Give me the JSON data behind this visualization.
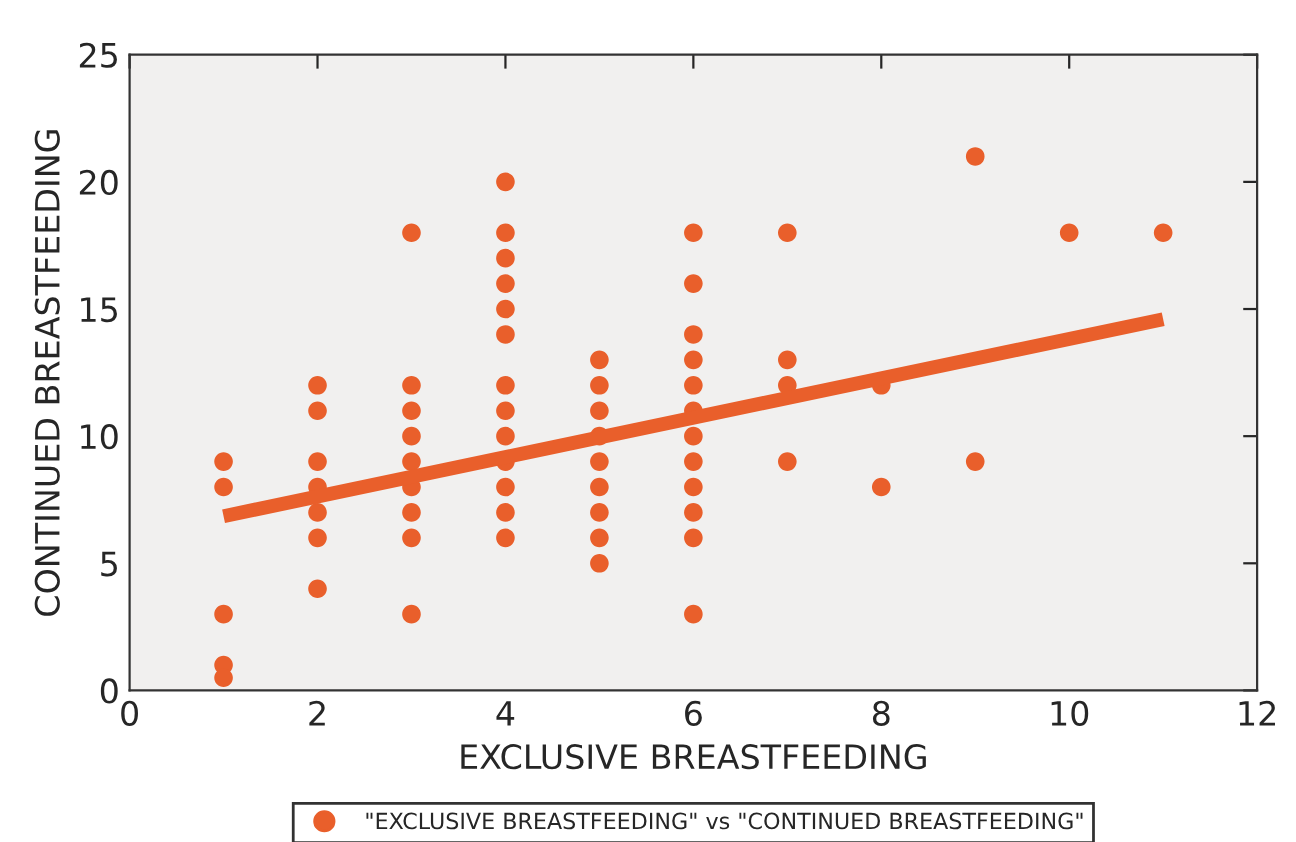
{
  "chart_data": {
    "type": "scatter",
    "xlabel": "EXCLUSIVE BREASTFEEDING",
    "ylabel": "CONTINUED BREASTFEEDING",
    "xlim": [
      0,
      12
    ],
    "xticks": [
      0,
      2,
      4,
      6,
      8,
      10,
      12
    ],
    "ylim": [
      0,
      25
    ],
    "yticks": [
      0,
      5,
      10,
      15,
      20,
      25
    ],
    "grid": false,
    "legend": "bottom",
    "marker": "circle",
    "series": [
      {
        "name": "\"EXCLUSIVE BREASTFEEDING\" vs \"CONTINUED BREASTFEEDING\"",
        "color": "#e95f2b",
        "x": [
          1,
          1,
          1,
          1,
          1,
          2,
          2,
          2,
          2,
          2,
          2,
          2,
          3,
          3,
          3,
          3,
          3,
          3,
          3,
          3,
          3,
          4,
          4,
          4,
          4,
          4,
          4,
          4,
          4,
          4,
          4,
          4,
          4,
          4,
          5,
          5,
          5,
          5,
          5,
          5,
          5,
          5,
          5,
          6,
          6,
          6,
          6,
          6,
          6,
          6,
          6,
          6,
          6,
          6,
          6,
          7,
          7,
          7,
          7,
          8,
          8,
          9,
          9,
          10,
          11
        ],
        "values": [
          9,
          8,
          3,
          1,
          0.5,
          12,
          11,
          9,
          8,
          7,
          6,
          4,
          18,
          12,
          11,
          10,
          9,
          8,
          7,
          6,
          3,
          20,
          18,
          17,
          16,
          15,
          14,
          12,
          11,
          10,
          9,
          8,
          7,
          6,
          13,
          12,
          11,
          10,
          9,
          8,
          7,
          6,
          5,
          18,
          16,
          14,
          13,
          12,
          11,
          10,
          9,
          8,
          7,
          6,
          3,
          18,
          13,
          12,
          9,
          12,
          8,
          21,
          9,
          18,
          18
        ]
      },
      {
        "type": "line",
        "color": "#e95f2b",
        "x": [
          1,
          11
        ],
        "values": [
          6.85,
          14.6
        ],
        "line_style": "solid",
        "marker": "none"
      }
    ]
  }
}
